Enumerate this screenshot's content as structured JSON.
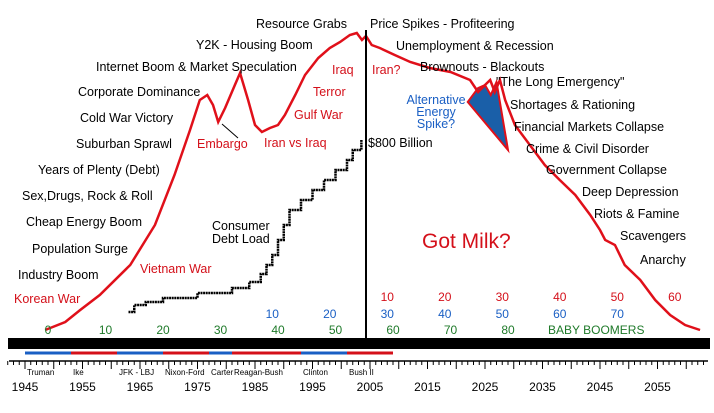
{
  "chart_data": {
    "type": "line",
    "title": "",
    "x_axis": {
      "range": [
        1945,
        2063
      ],
      "tick_labels": [
        "1945",
        "1955",
        "1965",
        "1975",
        "1985",
        "1995",
        "2005",
        "2015",
        "2025",
        "2035",
        "2045",
        "2055"
      ]
    },
    "series": [
      {
        "color": "#e0101a",
        "points": [
          [
            1948.5,
            10
          ],
          [
            1952,
            18
          ],
          [
            1954.6,
            30
          ],
          [
            1958,
            45
          ],
          [
            1963.3,
            75
          ],
          [
            1967.6,
            115
          ],
          [
            1971,
            165
          ],
          [
            1973.7,
            210
          ],
          [
            1975.4,
            240
          ],
          [
            1976.7,
            245
          ],
          [
            1977.7,
            235
          ],
          [
            1978.6,
            218
          ],
          [
            1979.8,
            232
          ],
          [
            1981.5,
            255
          ],
          [
            1982.4,
            267
          ],
          [
            1983.8,
            240
          ],
          [
            1985,
            215
          ],
          [
            1986.2,
            208
          ],
          [
            1987.6,
            212
          ],
          [
            1989,
            215
          ],
          [
            1990.2,
            225
          ],
          [
            1992,
            245
          ],
          [
            1993.7,
            265
          ],
          [
            1996,
            282
          ],
          [
            1998,
            292
          ],
          [
            1999.8,
            298
          ],
          [
            2001.5,
            305
          ],
          [
            2002.7,
            307
          ],
          [
            2003.6,
            300
          ],
          [
            2004.3,
            304
          ],
          [
            2005.3,
            295
          ],
          [
            2006.7,
            292
          ],
          [
            2009.3,
            285
          ],
          [
            2012,
            278
          ],
          [
            2015.4,
            272
          ],
          [
            2019,
            268
          ],
          [
            2022.4,
            260
          ],
          [
            2023.8,
            248
          ],
          [
            2025,
            255
          ],
          [
            2025.9,
            260
          ],
          [
            2026.7,
            248
          ],
          [
            2027.6,
            260
          ],
          [
            2028.5,
            240
          ],
          [
            2030.2,
            215
          ],
          [
            2032.8,
            195
          ],
          [
            2035.4,
            175
          ],
          [
            2038,
            160
          ],
          [
            2040.7,
            145
          ],
          [
            2043.3,
            125
          ],
          [
            2045,
            110
          ],
          [
            2045.9,
            100
          ],
          [
            2047.6,
            95
          ],
          [
            2049.3,
            75
          ],
          [
            2052,
            60
          ],
          [
            2054.6,
            40
          ],
          [
            2057.2,
            25
          ],
          [
            2059.8,
            15
          ],
          [
            2062.4,
            10
          ]
        ]
      },
      {
        "color": "#000000",
        "step": true,
        "points": [
          [
            1963,
            28
          ],
          [
            1964,
            35
          ],
          [
            1966,
            38
          ],
          [
            1969,
            42
          ],
          [
            1975,
            47
          ],
          [
            1981,
            52
          ],
          [
            1984,
            58
          ],
          [
            1986,
            66
          ],
          [
            1987,
            75
          ],
          [
            1988,
            85
          ],
          [
            1989,
            100
          ],
          [
            1990,
            115
          ],
          [
            1991,
            130
          ],
          [
            1993,
            140
          ],
          [
            1995,
            150
          ],
          [
            1997,
            160
          ],
          [
            1999,
            170
          ],
          [
            2001,
            180
          ],
          [
            2002,
            190
          ],
          [
            2003.5,
            200
          ]
        ]
      }
    ],
    "shaded_region": {
      "color": "#1a5fa8",
      "points": [
        [
          2022,
          238
        ],
        [
          2023.8,
          252
        ],
        [
          2025,
          255
        ],
        [
          2026,
          245
        ],
        [
          2027,
          258
        ],
        [
          2029,
          190
        ]
      ]
    },
    "divider_year": 2005,
    "annotations": {
      "left": [
        "Korean War",
        "Industry Boom",
        "Population Surge",
        "Cheap Energy Boom",
        "Sex,Drugs, Rock & Roll",
        "Years of Plenty (Debt)",
        "Suburban Sprawl",
        "Cold War Victory",
        "Corporate Dominance",
        "Internet Boom & Market Speculation",
        "Y2K - Housing Boom",
        "Resource Grabs"
      ],
      "right": [
        "Price Spikes - Profiteering",
        "Unemployment & Recession",
        "Brownouts - Blackouts",
        "\"The Long Emergency\"",
        "Shortages & Rationing",
        "Financial Markets Collapse",
        "Crime & Civil Disorder",
        "Government Collapse",
        "Deep Depression",
        "Riots & Famine",
        "Scavengers",
        "Anarchy"
      ],
      "wars": [
        "Vietnam War",
        "Embargo",
        "Iran vs Iraq",
        "Gulf War",
        "Terror",
        "Iraq",
        "Iran?"
      ],
      "alt_energy": [
        "Alternative",
        "Energy",
        "Spike?"
      ],
      "debt_value": "$800 Billion",
      "debt_label": [
        "Consumer",
        "Debt Load"
      ],
      "center": "Got Milk?"
    },
    "age_rows": {
      "red": [
        "10",
        "20",
        "30",
        "40",
        "50",
        "60"
      ],
      "blue": [
        "10",
        "20",
        "30",
        "40",
        "50",
        "60",
        "70"
      ],
      "green": [
        "0",
        "10",
        "20",
        "30",
        "40",
        "50",
        "60",
        "70",
        "80"
      ],
      "green_label": "BABY BOOMERS"
    },
    "presidents": [
      {
        "name": "Truman",
        "from": 1945,
        "to": 1953,
        "color": "#1a5fc4"
      },
      {
        "name": "Ike",
        "from": 1953,
        "to": 1961,
        "color": "#d4101a"
      },
      {
        "name": "JFK - LBJ",
        "from": 1961,
        "to": 1969,
        "color": "#1a5fc4"
      },
      {
        "name": "Nixon-Ford",
        "from": 1969,
        "to": 1977,
        "color": "#d4101a"
      },
      {
        "name": "Carter",
        "from": 1977,
        "to": 1981,
        "color": "#1a5fc4"
      },
      {
        "name": "Reagan-Bush",
        "from": 1981,
        "to": 1993,
        "color": "#d4101a"
      },
      {
        "name": "Clinton",
        "from": 1993,
        "to": 2001,
        "color": "#1a5fc4"
      },
      {
        "name": "Bush II",
        "from": 2001,
        "to": 2009,
        "color": "#d4101a"
      }
    ]
  }
}
